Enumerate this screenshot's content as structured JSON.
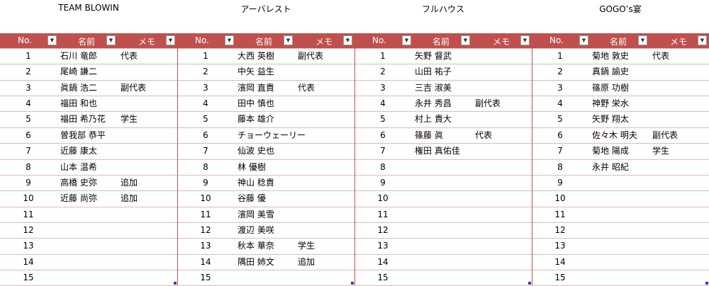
{
  "tables": [
    {
      "title": "TEAM BLOWIN",
      "header": [
        "No.",
        "名前",
        "メモ"
      ],
      "rows": [
        {
          "no": 1,
          "name": "石川 竜郎",
          "memo": "代表"
        },
        {
          "no": 2,
          "name": "尾崎 謙二"
        },
        {
          "no": 3,
          "name": "眞鍋 浩二",
          "memo": "副代表"
        },
        {
          "no": 4,
          "name": "福田 和也"
        },
        {
          "no": 5,
          "name": "福田 希乃花",
          "memo": "学生"
        },
        {
          "no": 6,
          "name": "曽我部 恭平"
        },
        {
          "no": 7,
          "name": "近藤 康太"
        },
        {
          "no": 8,
          "name": "山本 温希"
        },
        {
          "no": 9,
          "name": "高橋 史弥",
          "memo": "追加"
        },
        {
          "no": 10,
          "name": "近藤 尚弥",
          "memo": "追加"
        },
        {
          "no": 11
        },
        {
          "no": 12
        },
        {
          "no": 13
        },
        {
          "no": 14
        },
        {
          "no": 15
        }
      ]
    },
    {
      "title": "アーバレスト",
      "header": [
        "No.",
        "名前",
        "メモ"
      ],
      "rows": [
        {
          "no": 1,
          "name": "大西 英樹",
          "memo": "副代表"
        },
        {
          "no": 2,
          "name": "中矢 益生"
        },
        {
          "no": 3,
          "name": "濱岡 直貴",
          "memo": "代表"
        },
        {
          "no": 4,
          "name": "田中 慎也"
        },
        {
          "no": 5,
          "name": "藤本 雄介"
        },
        {
          "no": 6,
          "name": "チョーウェーリー"
        },
        {
          "no": 7,
          "name": "仙波 史也"
        },
        {
          "no": 8,
          "name": "林 優樹"
        },
        {
          "no": 9,
          "name": "神山 稔貴"
        },
        {
          "no": 10,
          "name": "谷藤 優"
        },
        {
          "no": 11,
          "name": "濱岡 美雪"
        },
        {
          "no": 12,
          "name": "渡辺 美咲"
        },
        {
          "no": 13,
          "name": "秋本 華奈",
          "memo": "学生"
        },
        {
          "no": 14,
          "name": "隅田 姉文",
          "memo": "追加"
        },
        {
          "no": 15
        }
      ]
    },
    {
      "title": "フルハウス",
      "header": [
        "No.",
        "名前",
        "メモ"
      ],
      "rows": [
        {
          "no": 1,
          "name": "矢野 督武"
        },
        {
          "no": 2,
          "name": "山田 祐子"
        },
        {
          "no": 3,
          "name": "三吉 淑美"
        },
        {
          "no": 4,
          "name": "永井 秀昌",
          "memo": "副代表"
        },
        {
          "no": 5,
          "name": "村上 貴大"
        },
        {
          "no": 6,
          "name": "篠藤 眞",
          "memo": "代表"
        },
        {
          "no": 7,
          "name": "権田 真佑佳"
        },
        {
          "no": 8
        },
        {
          "no": 9
        },
        {
          "no": 10
        },
        {
          "no": 11
        },
        {
          "no": 12
        },
        {
          "no": 13
        },
        {
          "no": 14
        },
        {
          "no": 15
        }
      ]
    },
    {
      "title": "GOGO’s宴",
      "header": [
        "No.",
        "名前",
        "メモ"
      ],
      "rows": [
        {
          "no": 1,
          "name": "菊地 敦史",
          "memo": "代表"
        },
        {
          "no": 2,
          "name": "真鍋 諭史"
        },
        {
          "no": 3,
          "name": "篠原 功樹"
        },
        {
          "no": 4,
          "name": "神野 栄水"
        },
        {
          "no": 5,
          "name": "矢野 翔太"
        },
        {
          "no": 6,
          "name": "佐々木 明夫",
          "memo": "副代表"
        },
        {
          "no": 7,
          "name": "菊地 陽成",
          "memo": "学生"
        },
        {
          "no": 8,
          "name": "永井 昭紀"
        },
        {
          "no": 9
        },
        {
          "no": 10
        },
        {
          "no": 11
        },
        {
          "no": 12
        },
        {
          "no": 13
        },
        {
          "no": 14
        },
        {
          "no": 15
        }
      ]
    }
  ]
}
